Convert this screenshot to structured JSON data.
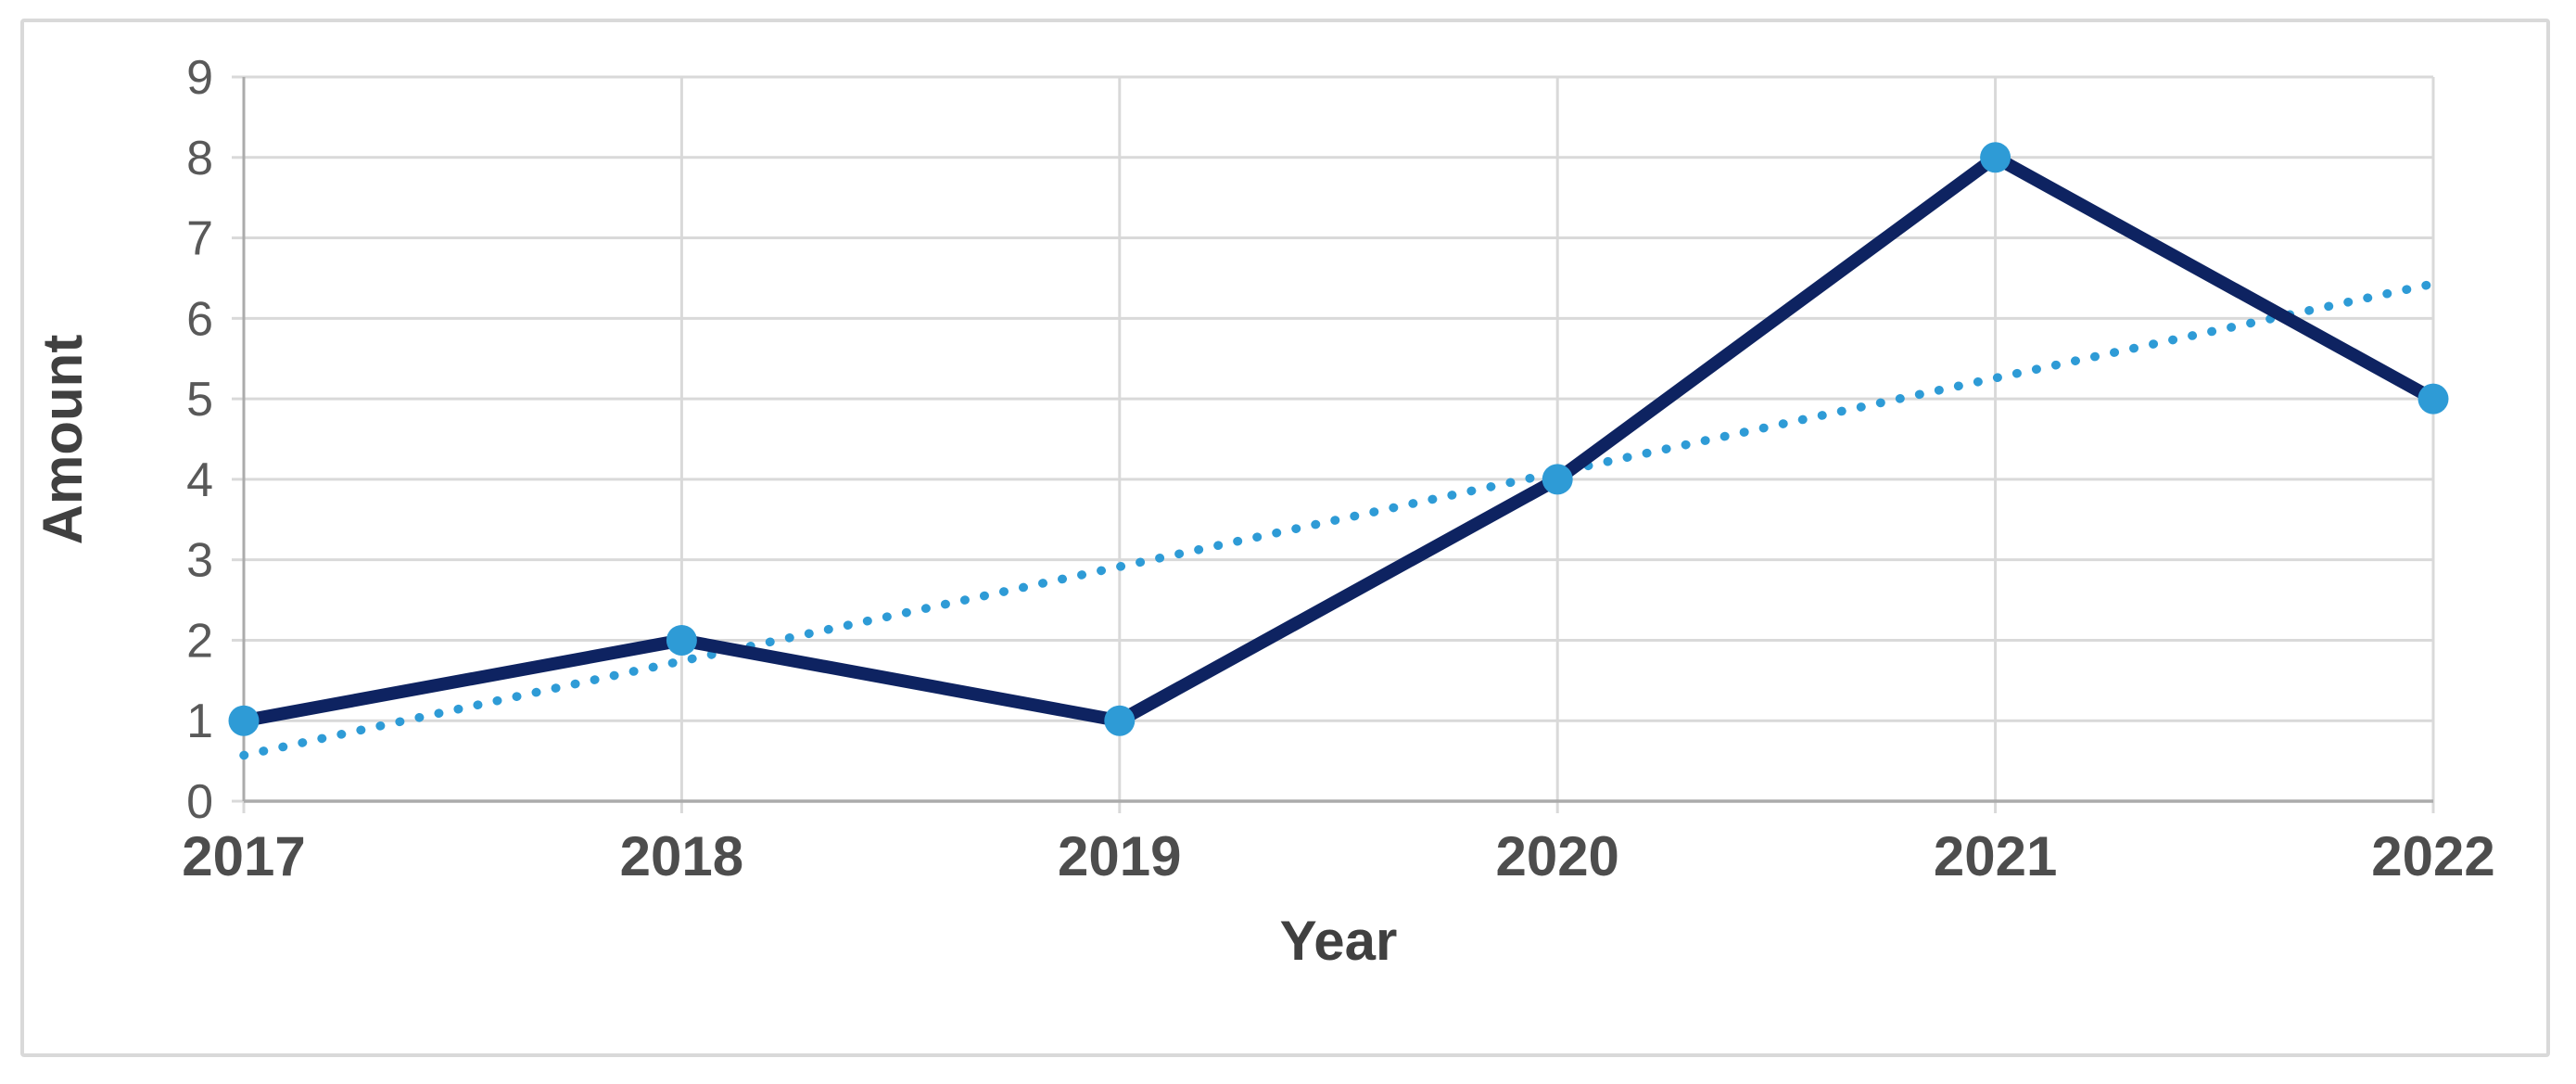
{
  "chart_data": {
    "type": "line",
    "title": "",
    "categories": [
      "2017",
      "2018",
      "2019",
      "2020",
      "2021",
      "2022"
    ],
    "series": [
      {
        "name": "Amount",
        "values": [
          1,
          2,
          1,
          4,
          8,
          5
        ]
      }
    ],
    "trendline": {
      "type": "linear",
      "start_value": 0.57,
      "end_value": 6.43,
      "style": "dotted"
    },
    "xlabel": "Year",
    "ylabel": "Amount",
    "ylim": [
      0,
      9
    ],
    "y_ticks": [
      0,
      1,
      2,
      3,
      4,
      5,
      6,
      7,
      8,
      9
    ],
    "grid": true,
    "legend": "none",
    "colors": {
      "series_line": "#0e2361",
      "marker": "#2e9bd6",
      "trendline": "#2e9bd6",
      "gridline": "#d9d9d9",
      "axis_line": "#ababab",
      "tick_text": "#595959",
      "x_tick_text": "#4d4d4d",
      "axis_title_text": "#404040",
      "frame_border": "#d9d9d9",
      "background": "#ffffff"
    }
  }
}
